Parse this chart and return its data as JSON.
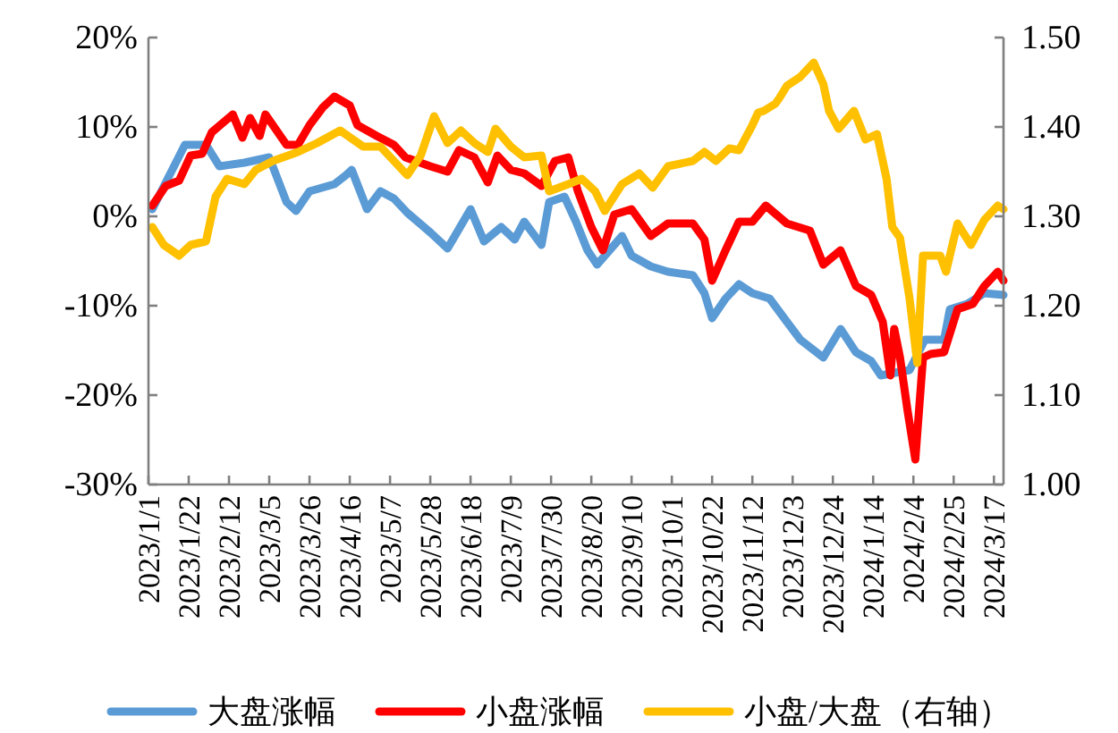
{
  "chart_data": {
    "type": "line",
    "legend": "bottom",
    "marker": "none",
    "line_style": "solid",
    "grid": false,
    "xlim": [
      "2023-01-01",
      "2024-03-22"
    ],
    "xticks": [
      {
        "value": "2023-01-01",
        "label": "2023/1/1"
      },
      {
        "value": "2023-01-22",
        "label": "2023/1/22"
      },
      {
        "value": "2023-02-12",
        "label": "2023/2/12"
      },
      {
        "value": "2023-03-05",
        "label": "2023/3/5"
      },
      {
        "value": "2023-03-26",
        "label": "2023/3/26"
      },
      {
        "value": "2023-04-16",
        "label": "2023/4/16"
      },
      {
        "value": "2023-05-07",
        "label": "2023/5/7"
      },
      {
        "value": "2023-05-28",
        "label": "2023/5/28"
      },
      {
        "value": "2023-06-18",
        "label": "2023/6/18"
      },
      {
        "value": "2023-07-09",
        "label": "2023/7/9"
      },
      {
        "value": "2023-07-30",
        "label": "2023/7/30"
      },
      {
        "value": "2023-08-20",
        "label": "2023/8/20"
      },
      {
        "value": "2023-09-10",
        "label": "2023/9/10"
      },
      {
        "value": "2023-10-01",
        "label": "2023/10/1"
      },
      {
        "value": "2023-10-22",
        "label": "2023/10/22"
      },
      {
        "value": "2023-11-12",
        "label": "2023/11/12"
      },
      {
        "value": "2023-12-03",
        "label": "2023/12/3"
      },
      {
        "value": "2023-12-24",
        "label": "2023/12/24"
      },
      {
        "value": "2024-01-14",
        "label": "2024/1/14"
      },
      {
        "value": "2024-02-04",
        "label": "2024/2/4"
      },
      {
        "value": "2024-02-25",
        "label": "2024/2/25"
      },
      {
        "value": "2024-03-17",
        "label": "2024/3/17"
      }
    ],
    "ylim": [
      -30,
      20
    ],
    "yticks": [
      {
        "value": -30,
        "label": "-30%"
      },
      {
        "value": -20,
        "label": "-20%"
      },
      {
        "value": -10,
        "label": "-10%"
      },
      {
        "value": 0,
        "label": "0%"
      },
      {
        "value": 10,
        "label": "10%"
      },
      {
        "value": 20,
        "label": "20%"
      }
    ],
    "y2lim": [
      1.0,
      1.5
    ],
    "y2ticks": [
      {
        "value": 1.0,
        "label": "1.00"
      },
      {
        "value": 1.1,
        "label": "1.10"
      },
      {
        "value": 1.2,
        "label": "1.20"
      },
      {
        "value": 1.3,
        "label": "1.30"
      },
      {
        "value": 1.4,
        "label": "1.40"
      },
      {
        "value": 1.5,
        "label": "1.50"
      }
    ],
    "series": [
      {
        "name": "大盘涨幅",
        "color": "#5b9bd5",
        "x": [
          "2023-01-03",
          "2023-01-20",
          "2023-01-31",
          "2023-02-07",
          "2023-02-20",
          "2023-03-05",
          "2023-03-14",
          "2023-03-19",
          "2023-03-26",
          "2023-04-08",
          "2023-04-14",
          "2023-04-17",
          "2023-04-25",
          "2023-05-02",
          "2023-05-09",
          "2023-05-16",
          "2023-05-28",
          "2023-06-06",
          "2023-06-18",
          "2023-06-25",
          "2023-07-04",
          "2023-07-11",
          "2023-07-16",
          "2023-07-25",
          "2023-07-29",
          "2023-08-06",
          "2023-08-12",
          "2023-08-18",
          "2023-08-23",
          "2023-09-05",
          "2023-09-10",
          "2023-09-20",
          "2023-09-29",
          "2023-10-12",
          "2023-10-18",
          "2023-10-22",
          "2023-10-29",
          "2023-11-05",
          "2023-11-12",
          "2023-11-21",
          "2023-11-30",
          "2023-12-07",
          "2023-12-13",
          "2023-12-19",
          "2023-12-28",
          "2024-01-05",
          "2024-01-13",
          "2024-01-18",
          "2024-02-02",
          "2024-02-10",
          "2024-02-20",
          "2024-02-23",
          "2024-03-03",
          "2024-03-12",
          "2024-03-22"
        ],
        "values": [
          0.8,
          8,
          8,
          5.6,
          6,
          6.6,
          1.6,
          0.6,
          2.8,
          3.6,
          4.6,
          5.2,
          0.8,
          2.8,
          2,
          0.4,
          -1.8,
          -3.6,
          0.8,
          -2.8,
          -1.2,
          -2.6,
          -0.6,
          -3.2,
          1.6,
          2.2,
          -0.6,
          -3.8,
          -5.4,
          -2.2,
          -4.4,
          -5.6,
          -6.2,
          -6.6,
          -8.6,
          -11.4,
          -9.2,
          -7.6,
          -8.6,
          -9.2,
          -11.8,
          -13.8,
          -14.8,
          -15.8,
          -12.6,
          -15.2,
          -16.2,
          -17.8,
          -17.2,
          -13.8,
          -13.8,
          -10.4,
          -9.8,
          -8.6,
          -8.8
        ]
      },
      {
        "name": "小盘涨幅",
        "color": "#ff0000",
        "x": [
          "2023-01-03",
          "2023-01-10",
          "2023-01-17",
          "2023-01-23",
          "2023-01-29",
          "2023-02-03",
          "2023-02-14",
          "2023-02-19",
          "2023-02-23",
          "2023-02-28",
          "2023-03-03",
          "2023-03-14",
          "2023-03-20",
          "2023-03-26",
          "2023-04-02",
          "2023-04-08",
          "2023-04-16",
          "2023-04-20",
          "2023-04-30",
          "2023-05-09",
          "2023-05-15",
          "2023-05-28",
          "2023-06-06",
          "2023-06-12",
          "2023-06-20",
          "2023-06-27",
          "2023-07-02",
          "2023-07-09",
          "2023-07-16",
          "2023-07-25",
          "2023-08-01",
          "2023-08-08",
          "2023-08-13",
          "2023-08-20",
          "2023-08-26",
          "2023-09-01",
          "2023-09-10",
          "2023-09-20",
          "2023-09-29",
          "2023-10-12",
          "2023-10-18",
          "2023-10-22",
          "2023-10-29",
          "2023-11-05",
          "2023-11-12",
          "2023-11-19",
          "2023-11-30",
          "2023-12-12",
          "2023-12-19",
          "2023-12-28",
          "2024-01-05",
          "2024-01-13",
          "2024-01-19",
          "2024-01-23",
          "2024-01-25",
          "2024-01-28",
          "2024-02-01",
          "2024-02-05",
          "2024-02-09",
          "2024-02-13",
          "2024-02-20",
          "2024-02-27",
          "2024-03-06",
          "2024-03-12",
          "2024-03-19",
          "2024-03-22"
        ],
        "values": [
          1.2,
          3.4,
          4,
          6.8,
          7,
          9.4,
          11.4,
          8.8,
          11,
          9,
          11.4,
          8,
          8,
          10.2,
          12.2,
          13.4,
          12.4,
          10.2,
          9,
          8,
          6.6,
          5.6,
          5,
          7.4,
          6.6,
          3.8,
          6.8,
          5.2,
          4.8,
          3.4,
          6.2,
          6.6,
          2.8,
          -1.2,
          -3.8,
          0.2,
          0.8,
          -2.2,
          -0.8,
          -0.8,
          -2.6,
          -7.2,
          -3.8,
          -0.6,
          -0.6,
          1.2,
          -0.8,
          -1.6,
          -5.4,
          -3.8,
          -7.8,
          -8.8,
          -11.8,
          -17.8,
          -12.6,
          -15.8,
          -21.8,
          -27.2,
          -15.8,
          -15.4,
          -15.2,
          -10.4,
          -9.8,
          -7.8,
          -6.2,
          -7.2
        ]
      },
      {
        "name": "小盘/大盘（右轴）",
        "color": "#ffc000",
        "axis": "y2",
        "x": [
          "2023-01-03",
          "2023-01-09",
          "2023-01-17",
          "2023-01-23",
          "2023-01-31",
          "2023-02-05",
          "2023-02-11",
          "2023-02-20",
          "2023-02-26",
          "2023-03-07",
          "2023-03-20",
          "2023-03-30",
          "2023-04-11",
          "2023-04-23",
          "2023-05-02",
          "2023-05-09",
          "2023-05-16",
          "2023-05-23",
          "2023-05-30",
          "2023-06-06",
          "2023-06-13",
          "2023-06-20",
          "2023-06-27",
          "2023-07-01",
          "2023-07-09",
          "2023-07-16",
          "2023-07-25",
          "2023-07-29",
          "2023-08-08",
          "2023-08-15",
          "2023-08-22",
          "2023-08-27",
          "2023-09-05",
          "2023-09-14",
          "2023-09-21",
          "2023-09-29",
          "2023-10-12",
          "2023-10-18",
          "2023-10-24",
          "2023-10-31",
          "2023-11-05",
          "2023-11-12",
          "2023-11-15",
          "2023-11-18",
          "2023-11-24",
          "2023-11-26",
          "2023-11-30",
          "2023-12-07",
          "2023-12-14",
          "2023-12-19",
          "2023-12-22",
          "2023-12-27",
          "2024-01-04",
          "2024-01-10",
          "2024-01-16",
          "2024-01-21",
          "2024-01-24",
          "2024-01-28",
          "2024-02-02",
          "2024-02-06",
          "2024-02-09",
          "2024-02-18",
          "2024-02-21",
          "2024-02-27",
          "2024-03-05",
          "2024-03-12",
          "2024-03-19",
          "2024-03-22"
        ],
        "values": [
          1.288,
          1.268,
          1.256,
          1.268,
          1.272,
          1.322,
          1.342,
          1.336,
          1.352,
          1.362,
          1.372,
          1.382,
          1.396,
          1.378,
          1.378,
          1.362,
          1.346,
          1.368,
          1.412,
          1.382,
          1.396,
          1.382,
          1.372,
          1.398,
          1.378,
          1.366,
          1.368,
          1.328,
          1.336,
          1.342,
          1.328,
          1.306,
          1.336,
          1.348,
          1.332,
          1.356,
          1.362,
          1.372,
          1.362,
          1.376,
          1.374,
          1.402,
          1.416,
          1.418,
          1.426,
          1.432,
          1.446,
          1.456,
          1.472,
          1.448,
          1.418,
          1.398,
          1.418,
          1.386,
          1.392,
          1.342,
          1.288,
          1.276,
          1.208,
          1.136,
          1.256,
          1.256,
          1.238,
          1.292,
          1.268,
          1.296,
          1.312,
          1.308
        ]
      }
    ]
  }
}
